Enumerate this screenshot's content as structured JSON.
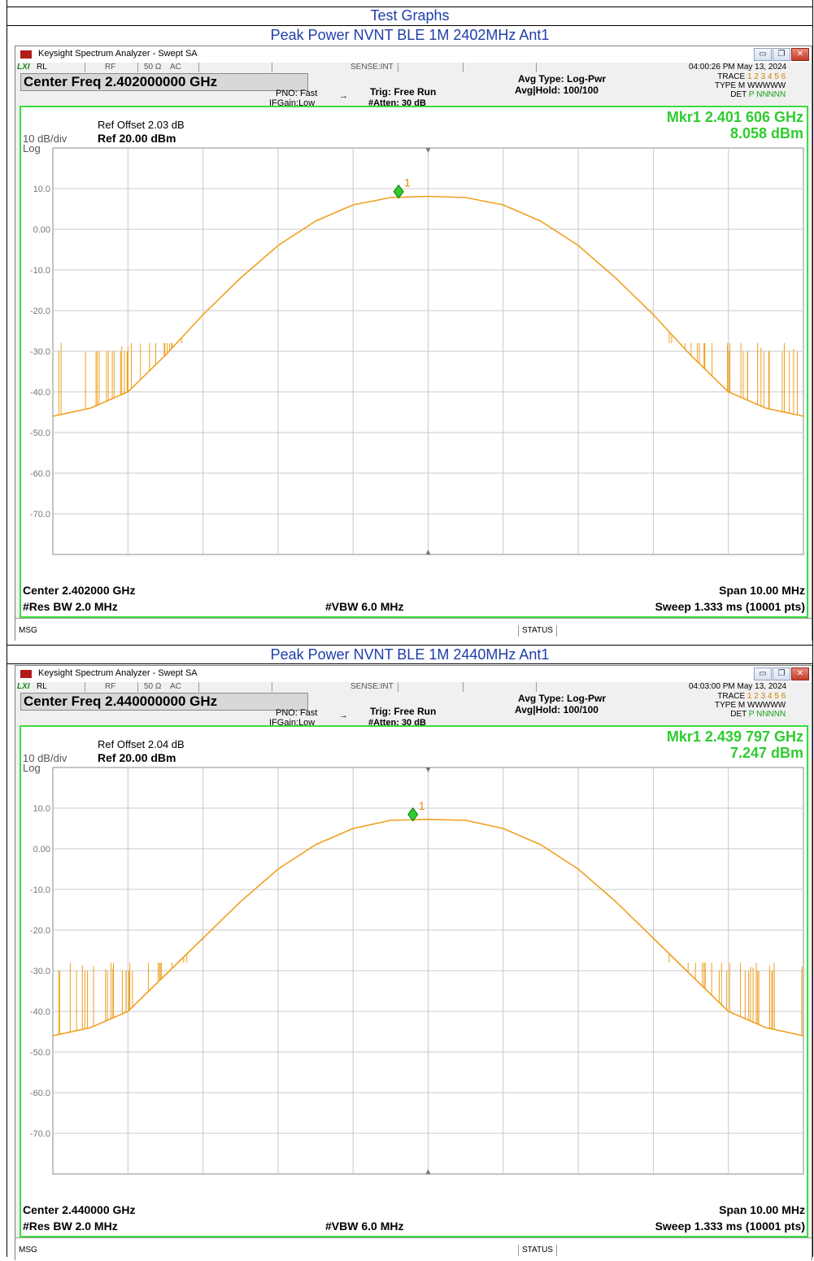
{
  "page": {
    "heading": "Test Graphs"
  },
  "window": {
    "title": "Keysight Spectrum Analyzer - Swept SA",
    "status": {
      "rl": "RL",
      "rf": "RF",
      "impedance": "50 Ω",
      "coupling": "AC",
      "sense": "SENSE:INT"
    },
    "pno": "PNO: Fast",
    "ifgain": "IFGain:Low",
    "trig": "Trig: Free Run",
    "atten": "#Atten: 30 dB",
    "avg_type": "Avg Type: Log-Pwr",
    "avg_hold": "Avg|Hold: 100/100",
    "trace_label": "TRACE",
    "trace_nums": "1 2 3 4 5 6",
    "type_label": "TYPE",
    "type_val": "M WWWWW",
    "det_label": "DET",
    "det_val": "P NNNNN",
    "scale": "10 dB/div",
    "log": "Log",
    "ref": "Ref 20.00 dBm",
    "res_bw": "#Res BW 2.0 MHz",
    "vbw": "#VBW 6.0 MHz",
    "span": "Span 10.00 MHz",
    "sweep": "Sweep  1.333 ms (10001 pts)",
    "msg": "MSG",
    "status_label": "STATUS",
    "marker_label": "1",
    "minimize": "▭",
    "restore": "❐",
    "close": "✕"
  },
  "graphs": [
    {
      "caption": "Peak Power NVNT BLE 1M 2402MHz Ant1",
      "timestamp": "04:00:26 PM May 13, 2024",
      "center_freq": "Center Freq 2.402000000 GHz",
      "ref_offset": "Ref Offset 2.03 dB",
      "mkr_freq": "Mkr1 2.401 606 GHz",
      "mkr_level": "8.058 dBm",
      "center": "Center 2.402000 GHz"
    },
    {
      "caption": "Peak Power NVNT BLE 1M 2440MHz Ant1",
      "timestamp": "04:03:00 PM May 13, 2024",
      "center_freq": "Center Freq 2.440000000 GHz",
      "ref_offset": "Ref Offset 2.04 dB",
      "mkr_freq": "Mkr1 2.439 797 GHz",
      "mkr_level": "7.247 dBm",
      "center": "Center 2.440000 GHz"
    }
  ],
  "chart_data": [
    {
      "type": "line",
      "xlabel": "",
      "ylabel": "",
      "x_center_ghz": 2.402,
      "span_mhz": 10,
      "ylim": [
        -80,
        20
      ],
      "y_ticks": [
        "10.0",
        "0.00",
        "-10.0",
        "-20.0",
        "-30.0",
        "-40.0",
        "-50.0",
        "-60.0",
        "-70.0"
      ],
      "marker": {
        "x_ghz": 2.401606,
        "y_dbm": 8.058
      },
      "grid": true,
      "trace_color": "#f0a020",
      "series": [
        {
          "x_mhz_offset": [
            -5,
            -4.5,
            -4,
            -3.5,
            -3,
            -2.5,
            -2,
            -1.5,
            -1,
            -0.5,
            0,
            0.5,
            1,
            1.5,
            2,
            2.5,
            3,
            3.5,
            4,
            4.5,
            5
          ],
          "values": [
            -46,
            -44,
            -40,
            -31,
            -21,
            -12,
            -4,
            2,
            6,
            7.8,
            8.1,
            7.8,
            6,
            2,
            -4,
            -12,
            -21,
            -31,
            -40,
            -44,
            -46
          ]
        }
      ]
    },
    {
      "type": "line",
      "xlabel": "",
      "ylabel": "",
      "x_center_ghz": 2.44,
      "span_mhz": 10,
      "ylim": [
        -80,
        20
      ],
      "y_ticks": [
        "10.0",
        "0.00",
        "-10.0",
        "-20.0",
        "-30.0",
        "-40.0",
        "-50.0",
        "-60.0",
        "-70.0"
      ],
      "marker": {
        "x_ghz": 2.439797,
        "y_dbm": 7.247
      },
      "grid": true,
      "trace_color": "#f0a020",
      "series": [
        {
          "x_mhz_offset": [
            -5,
            -4.5,
            -4,
            -3.5,
            -3,
            -2.5,
            -2,
            -1.5,
            -1,
            -0.5,
            0,
            0.5,
            1,
            1.5,
            2,
            2.5,
            3,
            3.5,
            4,
            4.5,
            5
          ],
          "values": [
            -46,
            -44,
            -40,
            -31,
            -22,
            -13,
            -5,
            1,
            5,
            7,
            7.25,
            7,
            5,
            1,
            -5,
            -13,
            -22,
            -31,
            -40,
            -44,
            -46
          ]
        }
      ]
    }
  ]
}
